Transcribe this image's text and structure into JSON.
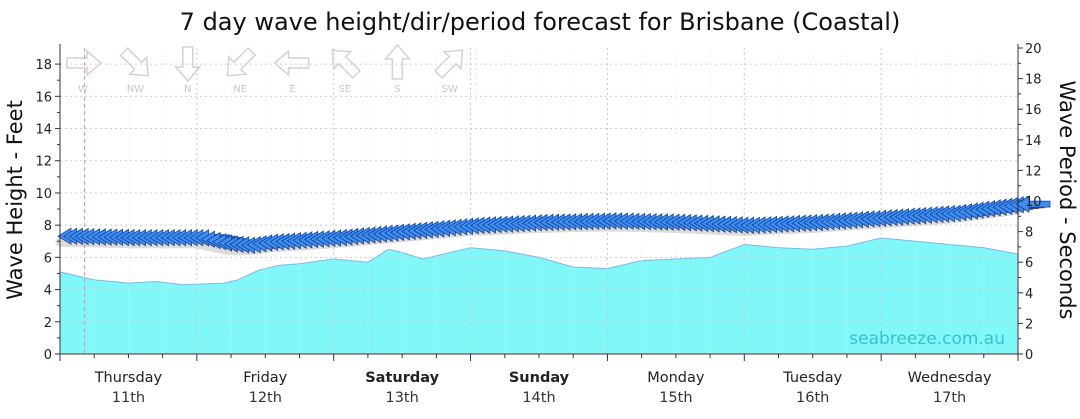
{
  "chart_data": {
    "type": "area",
    "title": "7 day wave height/dir/period forecast for Brisbane (Coastal)",
    "ylabel_left": "Wave Height - Feet",
    "ylabel_right": "Wave Period - Seconds",
    "left_axis": {
      "min": 0,
      "max": 19,
      "ticks": [
        0,
        2,
        4,
        6,
        8,
        10,
        12,
        14,
        16,
        18
      ]
    },
    "right_axis": {
      "min": 0,
      "max": 20,
      "ticks": [
        0,
        2,
        4,
        6,
        8,
        10,
        12,
        14,
        16,
        18,
        20
      ]
    },
    "x_range_days": [
      0,
      7.0
    ],
    "days": [
      {
        "name": "Thursday",
        "date": "11th",
        "bold": false
      },
      {
        "name": "Friday",
        "date": "12th",
        "bold": false
      },
      {
        "name": "Saturday",
        "date": "13th",
        "bold": true
      },
      {
        "name": "Sunday",
        "date": "14th",
        "bold": true
      },
      {
        "name": "Monday",
        "date": "15th",
        "bold": false
      },
      {
        "name": "Tuesday",
        "date": "16th",
        "bold": false
      },
      {
        "name": "Wednesday",
        "date": "17th",
        "bold": false
      }
    ],
    "compass_legend": [
      "W",
      "NW",
      "N",
      "NE",
      "E",
      "SE",
      "S",
      "SW"
    ],
    "compass_rotations_deg": [
      0,
      45,
      90,
      135,
      180,
      225,
      270,
      315
    ],
    "now_line_day": 0.18,
    "grid": true,
    "wave_height_series": {
      "name": "Wave Height",
      "color": "#80f8fa",
      "x": [
        0,
        0.25,
        0.5,
        0.7,
        0.9,
        1.2,
        1.3,
        1.45,
        1.6,
        1.75,
        2.0,
        2.25,
        2.4,
        2.5,
        2.65,
        3.0,
        3.25,
        3.5,
        3.75,
        4.0,
        4.25,
        4.5,
        4.75,
        5.0,
        5.25,
        5.5,
        5.75,
        6.0,
        6.25,
        6.5,
        6.75,
        7.0
      ],
      "values": [
        5.1,
        4.6,
        4.4,
        4.5,
        4.3,
        4.4,
        4.6,
        5.2,
        5.5,
        5.6,
        5.9,
        5.7,
        6.5,
        6.3,
        5.9,
        6.6,
        6.4,
        6.0,
        5.4,
        5.3,
        5.8,
        5.9,
        6.0,
        6.8,
        6.6,
        6.5,
        6.7,
        7.2,
        7.0,
        6.8,
        6.6,
        6.2
      ]
    },
    "wave_period_series": {
      "name": "Wave Period",
      "direction": "E",
      "arrow_color": "#3b8ff0",
      "x": [
        0,
        0.5,
        1.0,
        1.2,
        1.35,
        1.5,
        2.0,
        2.5,
        3.0,
        3.5,
        4.0,
        4.5,
        5.0,
        5.5,
        6.0,
        6.5,
        7.0
      ],
      "values": [
        7.7,
        7.6,
        7.6,
        7.2,
        7.1,
        7.3,
        7.6,
        8.0,
        8.4,
        8.6,
        8.7,
        8.6,
        8.4,
        8.6,
        8.9,
        9.2,
        9.8
      ]
    },
    "watermark": "seabreeze.com.au"
  }
}
